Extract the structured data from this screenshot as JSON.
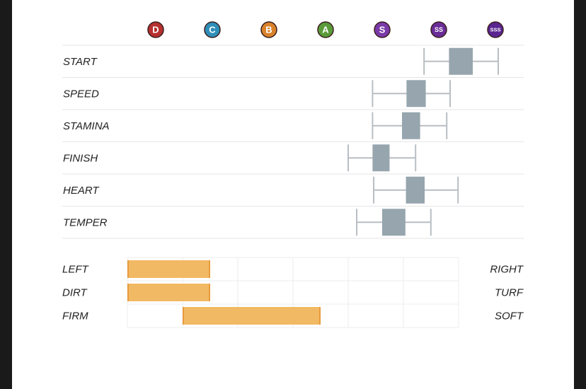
{
  "chart_data": [
    {
      "type": "boxplot",
      "grades": [
        {
          "label": "D",
          "color": "#b5302f"
        },
        {
          "label": "C",
          "color": "#2f8fb8"
        },
        {
          "label": "B",
          "color": "#d9822b"
        },
        {
          "label": "A",
          "color": "#5a9a3a"
        },
        {
          "label": "S",
          "color": "#7a3aa8"
        },
        {
          "label": "SS",
          "color": "#6a2d98"
        },
        {
          "label": "SSS",
          "color": "#5a2590"
        }
      ],
      "rows": [
        {
          "name": "START",
          "whisker": [
            4.74,
            6.05
          ],
          "box": [
            5.18,
            5.6
          ]
        },
        {
          "name": "SPEED",
          "whisker": [
            3.83,
            5.2
          ],
          "box": [
            4.43,
            4.77
          ]
        },
        {
          "name": "STAMINA",
          "whisker": [
            3.83,
            5.14
          ],
          "box": [
            4.35,
            4.67
          ]
        },
        {
          "name": "FINISH",
          "whisker": [
            3.4,
            4.59
          ],
          "box": [
            3.83,
            4.13
          ]
        },
        {
          "name": "HEART",
          "whisker": [
            3.85,
            5.34
          ],
          "box": [
            4.42,
            4.75
          ]
        },
        {
          "name": "TEMPER",
          "whisker": [
            3.55,
            4.86
          ],
          "box": [
            4.0,
            4.41
          ]
        }
      ],
      "box_color": "#96a5ae",
      "whisker_color": "#b8bec3"
    },
    {
      "type": "bar",
      "rows": [
        {
          "left": "LEFT",
          "right": "RIGHT",
          "range": [
            0,
            1.5
          ]
        },
        {
          "left": "DIRT",
          "right": "TURF",
          "range": [
            0,
            1.5
          ]
        },
        {
          "left": "FIRM",
          "right": "SOFT",
          "range": [
            1,
            3.5
          ]
        }
      ],
      "divisions": 6,
      "bar_color": "#f2b964",
      "bar_edge_color": "#e89a3c"
    }
  ]
}
